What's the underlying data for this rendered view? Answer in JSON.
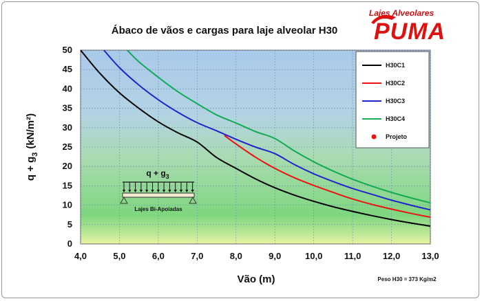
{
  "chart_data": {
    "type": "line",
    "title": "Ábaco de vãos e cargas para laje alveolar H30",
    "xlabel": "Vão (m)",
    "ylabel_main": "q + g",
    "ylabel_sub": "3",
    "ylabel_unit": "(kN/m²)",
    "xlim": [
      4,
      13
    ],
    "ylim": [
      0,
      50
    ],
    "xticks": [
      4,
      5,
      6,
      7,
      8,
      9,
      10,
      11,
      12,
      13
    ],
    "xtick_labels": [
      "4,0",
      "5,0",
      "6,0",
      "7,0",
      "8,0",
      "9,0",
      "10,0",
      "11,0",
      "12,0",
      "13,0"
    ],
    "yticks": [
      0,
      5,
      10,
      15,
      20,
      25,
      30,
      35,
      40,
      45,
      50
    ],
    "grid": true,
    "legend_position": "top-right",
    "series": [
      {
        "name": "H30C1",
        "color": "#000000",
        "points": [
          [
            4.0,
            50
          ],
          [
            4.5,
            44
          ],
          [
            5.0,
            39
          ],
          [
            5.5,
            35
          ],
          [
            6.0,
            31.5
          ],
          [
            6.5,
            28.7
          ],
          [
            7.0,
            26.3
          ],
          [
            7.5,
            22.3
          ],
          [
            8.0,
            19.5
          ],
          [
            8.5,
            16.8
          ],
          [
            9.0,
            14.5
          ],
          [
            9.5,
            12.6
          ],
          [
            10.0,
            11.0
          ],
          [
            10.5,
            9.6
          ],
          [
            11.0,
            8.4
          ],
          [
            11.5,
            7.3
          ],
          [
            12.0,
            6.3
          ],
          [
            12.5,
            5.4
          ],
          [
            13.0,
            4.6
          ]
        ]
      },
      {
        "name": "H30C2",
        "color": "#ee1111",
        "points": [
          [
            7.7,
            28
          ],
          [
            8.0,
            25.8
          ],
          [
            8.5,
            22.4
          ],
          [
            9.0,
            19.5
          ],
          [
            9.5,
            17.1
          ],
          [
            10.0,
            15.1
          ],
          [
            10.5,
            13.3
          ],
          [
            11.0,
            11.6
          ],
          [
            11.5,
            10.2
          ],
          [
            12.0,
            9.0
          ],
          [
            12.5,
            7.9
          ],
          [
            13.0,
            6.9
          ]
        ]
      },
      {
        "name": "H30C3",
        "color": "#2222cc",
        "points": [
          [
            4.6,
            50
          ],
          [
            5.0,
            45.5
          ],
          [
            5.5,
            41
          ],
          [
            6.0,
            37.2
          ],
          [
            6.5,
            34
          ],
          [
            7.0,
            31.3
          ],
          [
            7.5,
            29.2
          ],
          [
            8.0,
            27
          ],
          [
            8.5,
            25
          ],
          [
            9.0,
            23.3
          ],
          [
            9.5,
            20.5
          ],
          [
            10.0,
            18.1
          ],
          [
            10.5,
            16.1
          ],
          [
            11.0,
            14.3
          ],
          [
            11.5,
            12.8
          ],
          [
            12.0,
            11.3
          ],
          [
            12.5,
            10.0
          ],
          [
            13.0,
            8.8
          ]
        ]
      },
      {
        "name": "H30C4",
        "color": "#11aa55",
        "points": [
          [
            5.2,
            50
          ],
          [
            5.5,
            47
          ],
          [
            6.0,
            43
          ],
          [
            6.5,
            39.3
          ],
          [
            7.0,
            36.2
          ],
          [
            7.5,
            33.3
          ],
          [
            8.0,
            31.2
          ],
          [
            8.5,
            29
          ],
          [
            9.0,
            27.2
          ],
          [
            9.5,
            24
          ],
          [
            10.0,
            21.2
          ],
          [
            10.5,
            18.8
          ],
          [
            11.0,
            16.7
          ],
          [
            11.5,
            14.9
          ],
          [
            12.0,
            13.3
          ],
          [
            12.5,
            11.9
          ],
          [
            13.0,
            10.6
          ]
        ]
      }
    ],
    "legend_extra": {
      "label": "Projeto",
      "color": "#ee1111"
    },
    "annotation_load": {
      "main": "q + g",
      "sub": "3"
    },
    "annotation_beam": "Lajes Bi-Apoiadas",
    "note": "Peso H30  = 373 Kg/m2"
  },
  "brand": {
    "tagline": "Lajes Alveolares",
    "name": "PUMA",
    "color": "#e01010"
  }
}
